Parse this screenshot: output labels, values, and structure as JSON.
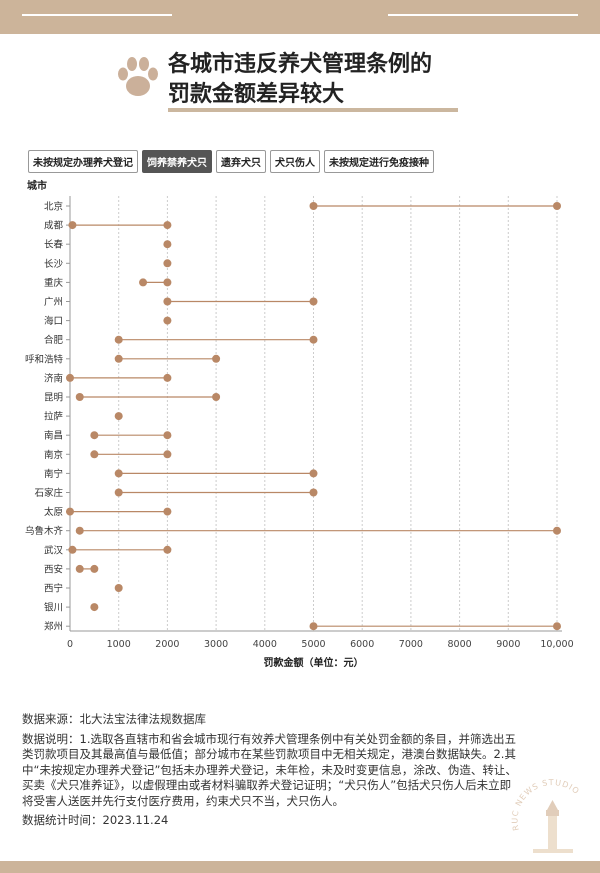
{
  "title_line1": "各城市违反养犬管理条例的",
  "title_line2": "罚款金额差异较大",
  "tabs": [
    {
      "label": "未按规定办理养犬登记",
      "active": false
    },
    {
      "label": "饲养禁养犬只",
      "active": true
    },
    {
      "label": "遗弃犬只",
      "active": false
    },
    {
      "label": "犬只伤人",
      "active": false
    },
    {
      "label": "未按规定进行免疫接种",
      "active": false
    }
  ],
  "chart_data": {
    "type": "dumbbell",
    "ylabel": "城市",
    "xlabel": "罚款金额（单位：元）",
    "xlim": [
      0,
      10000
    ],
    "xticks": [
      0,
      1000,
      2000,
      3000,
      4000,
      5000,
      6000,
      7000,
      8000,
      9000,
      10000
    ],
    "xtick_labels": [
      "0",
      "1000",
      "2000",
      "3000",
      "4000",
      "5000",
      "6000",
      "7000",
      "8000",
      "9000",
      "10,000"
    ],
    "grid": "vertical-dashed",
    "color": "#b98866",
    "rows": [
      {
        "city": "北京",
        "min": 5000,
        "max": 10000
      },
      {
        "city": "成都",
        "min": 50,
        "max": 2000
      },
      {
        "city": "长春",
        "min": 2000,
        "max": 2000
      },
      {
        "city": "长沙",
        "min": 2000,
        "max": 2000
      },
      {
        "city": "重庆",
        "min": 1500,
        "max": 2000
      },
      {
        "city": "广州",
        "min": 2000,
        "max": 5000
      },
      {
        "city": "海口",
        "min": 2000,
        "max": 2000
      },
      {
        "city": "合肥",
        "min": 1000,
        "max": 5000
      },
      {
        "city": "呼和浩特",
        "min": 1000,
        "max": 3000
      },
      {
        "city": "济南",
        "min": 0,
        "max": 2000
      },
      {
        "city": "昆明",
        "min": 200,
        "max": 3000
      },
      {
        "city": "拉萨",
        "min": 1000,
        "max": 1000
      },
      {
        "city": "南昌",
        "min": 500,
        "max": 2000
      },
      {
        "city": "南京",
        "min": 500,
        "max": 2000
      },
      {
        "city": "南宁",
        "min": 1000,
        "max": 5000
      },
      {
        "city": "石家庄",
        "min": 1000,
        "max": 5000
      },
      {
        "city": "太原",
        "min": 0,
        "max": 2000
      },
      {
        "city": "乌鲁木齐",
        "min": 200,
        "max": 10000
      },
      {
        "city": "武汉",
        "min": 50,
        "max": 2000
      },
      {
        "city": "西安",
        "min": 200,
        "max": 500
      },
      {
        "city": "西宁",
        "min": 1000,
        "max": 1000
      },
      {
        "city": "银川",
        "min": 500,
        "max": 500
      },
      {
        "city": "郑州",
        "min": 5000,
        "max": 10000
      }
    ]
  },
  "footer": {
    "source": "数据来源：北大法宝法律法规数据库",
    "note": "数据说明：1.选取各直辖市和省会城市现行有效养犬管理条例中有关处罚金额的条目，并筛选出五类罚款项目及其最高值与最低值；部分城市在某些罚款项目中无相关规定，港澳台数据缺失。2.其中“未按规定办理养犬登记”包括未办理养犬登记，未年检，未及时变更信息，涂改、伪造、转让、买卖《犬只准养证》，以虚假理由或者材料骗取养犬登记证明；“犬只伤人”包括犬只伤人后未立即将受害人送医并先行支付医疗费用，约束犬只不当，犬只伤人。",
    "date": "数据统计时间：2023.11.24"
  },
  "stamp_text": "RUC NEWS STUDIO",
  "theme": {
    "accent": "#ccb49a",
    "dot": "#b98866",
    "underline": "#cbb79f"
  }
}
